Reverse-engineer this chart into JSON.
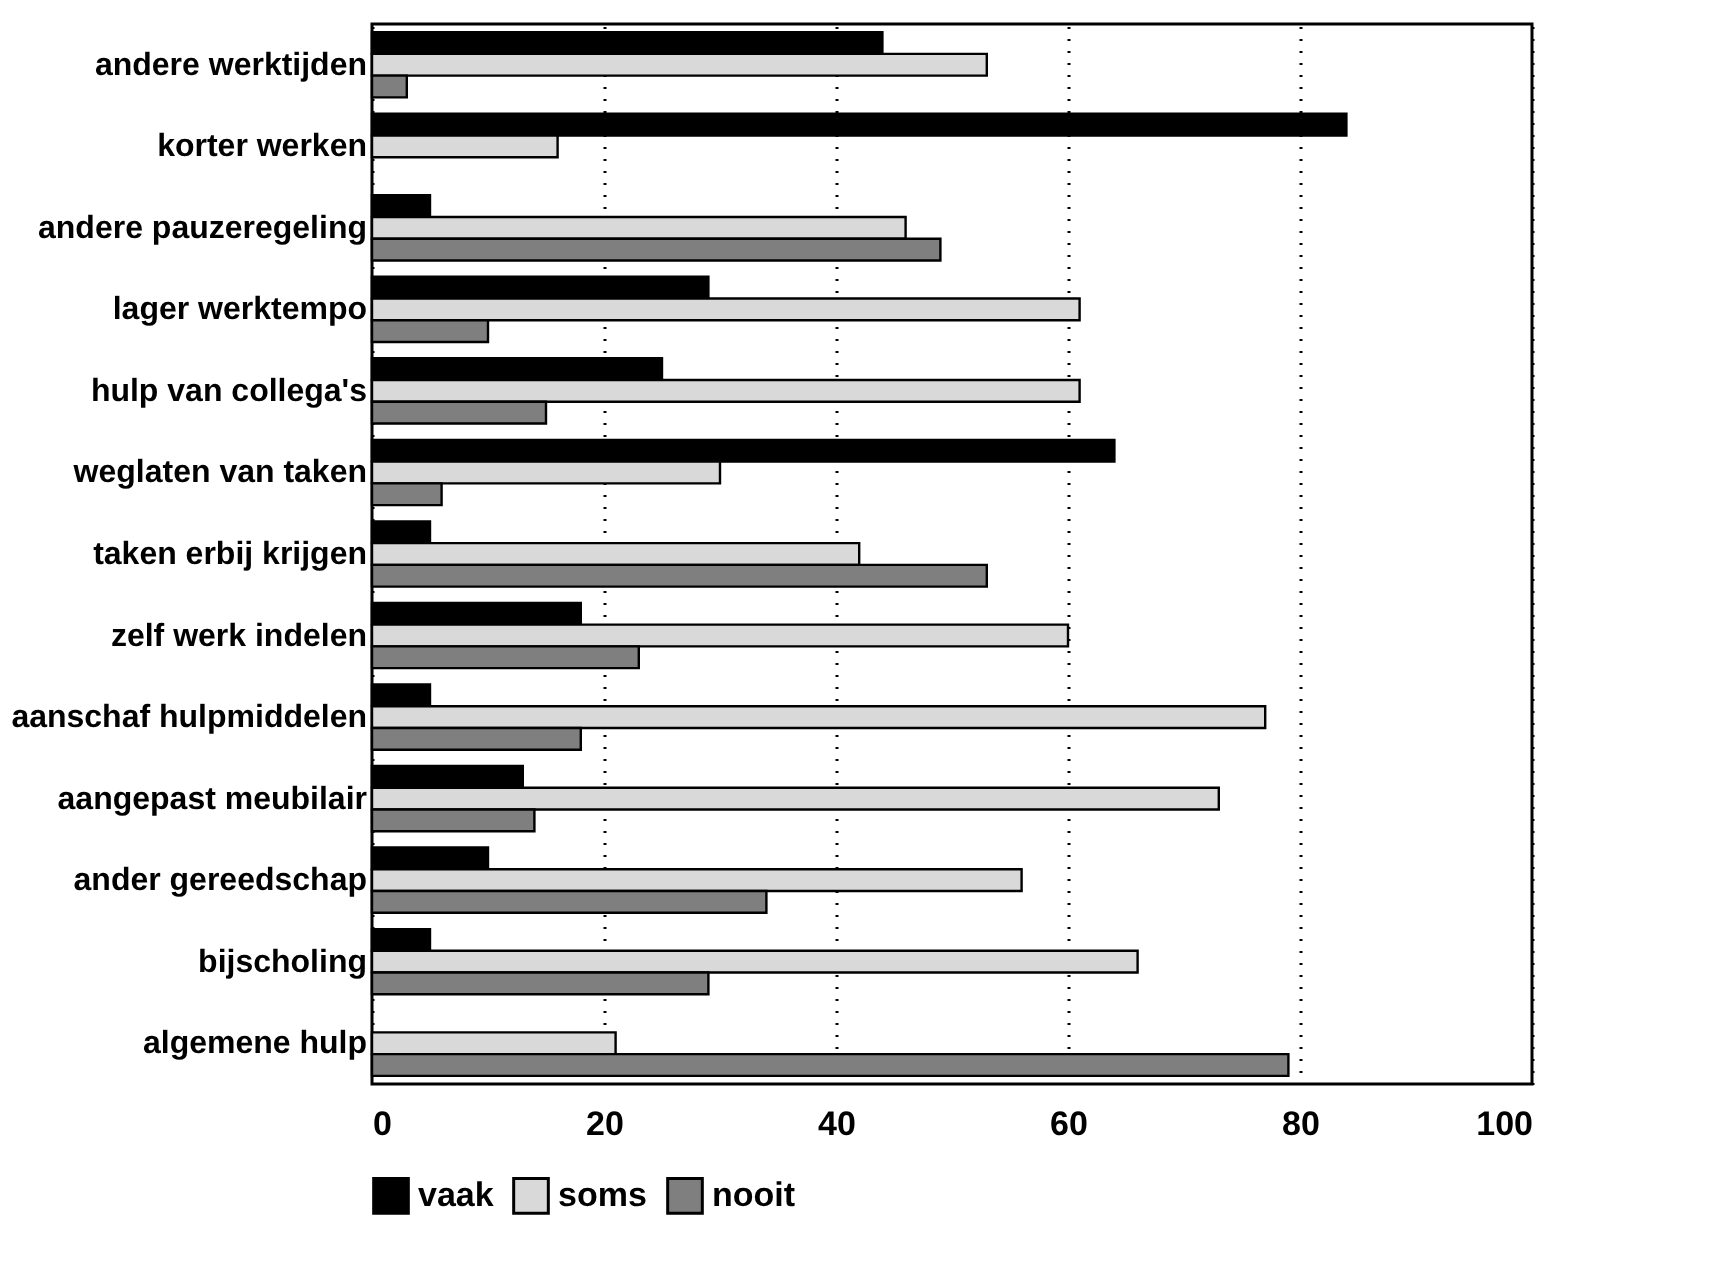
{
  "chart_data": {
    "type": "bar",
    "orientation": "horizontal",
    "categories": [
      "andere werktijden",
      "korter werken",
      "andere pauzeregeling",
      "lager werktempo",
      "hulp van collega's",
      "weglaten van taken",
      "taken erbij krijgen",
      "zelf werk indelen",
      "aanschaf hulpmiddelen",
      "aangepast meubilair",
      "ander gereedschap",
      "bijscholing",
      "algemene hulp"
    ],
    "series": [
      {
        "name": "vaak",
        "color": "#000000",
        "values": [
          44,
          84,
          5,
          29,
          25,
          64,
          5,
          18,
          5,
          13,
          10,
          5,
          null
        ]
      },
      {
        "name": "soms",
        "color": "#d9d9d9",
        "values": [
          53,
          16,
          46,
          61,
          61,
          30,
          42,
          60,
          77,
          73,
          56,
          66,
          21
        ]
      },
      {
        "name": "nooit",
        "color": "#7f7f7f",
        "values": [
          3,
          null,
          49,
          10,
          15,
          6,
          53,
          23,
          18,
          14,
          34,
          29,
          79
        ]
      }
    ],
    "xlim": [
      0,
      100
    ],
    "xticks": [
      0,
      20,
      40,
      60,
      80,
      100
    ],
    "grid": "x",
    "legend": "bottom"
  }
}
